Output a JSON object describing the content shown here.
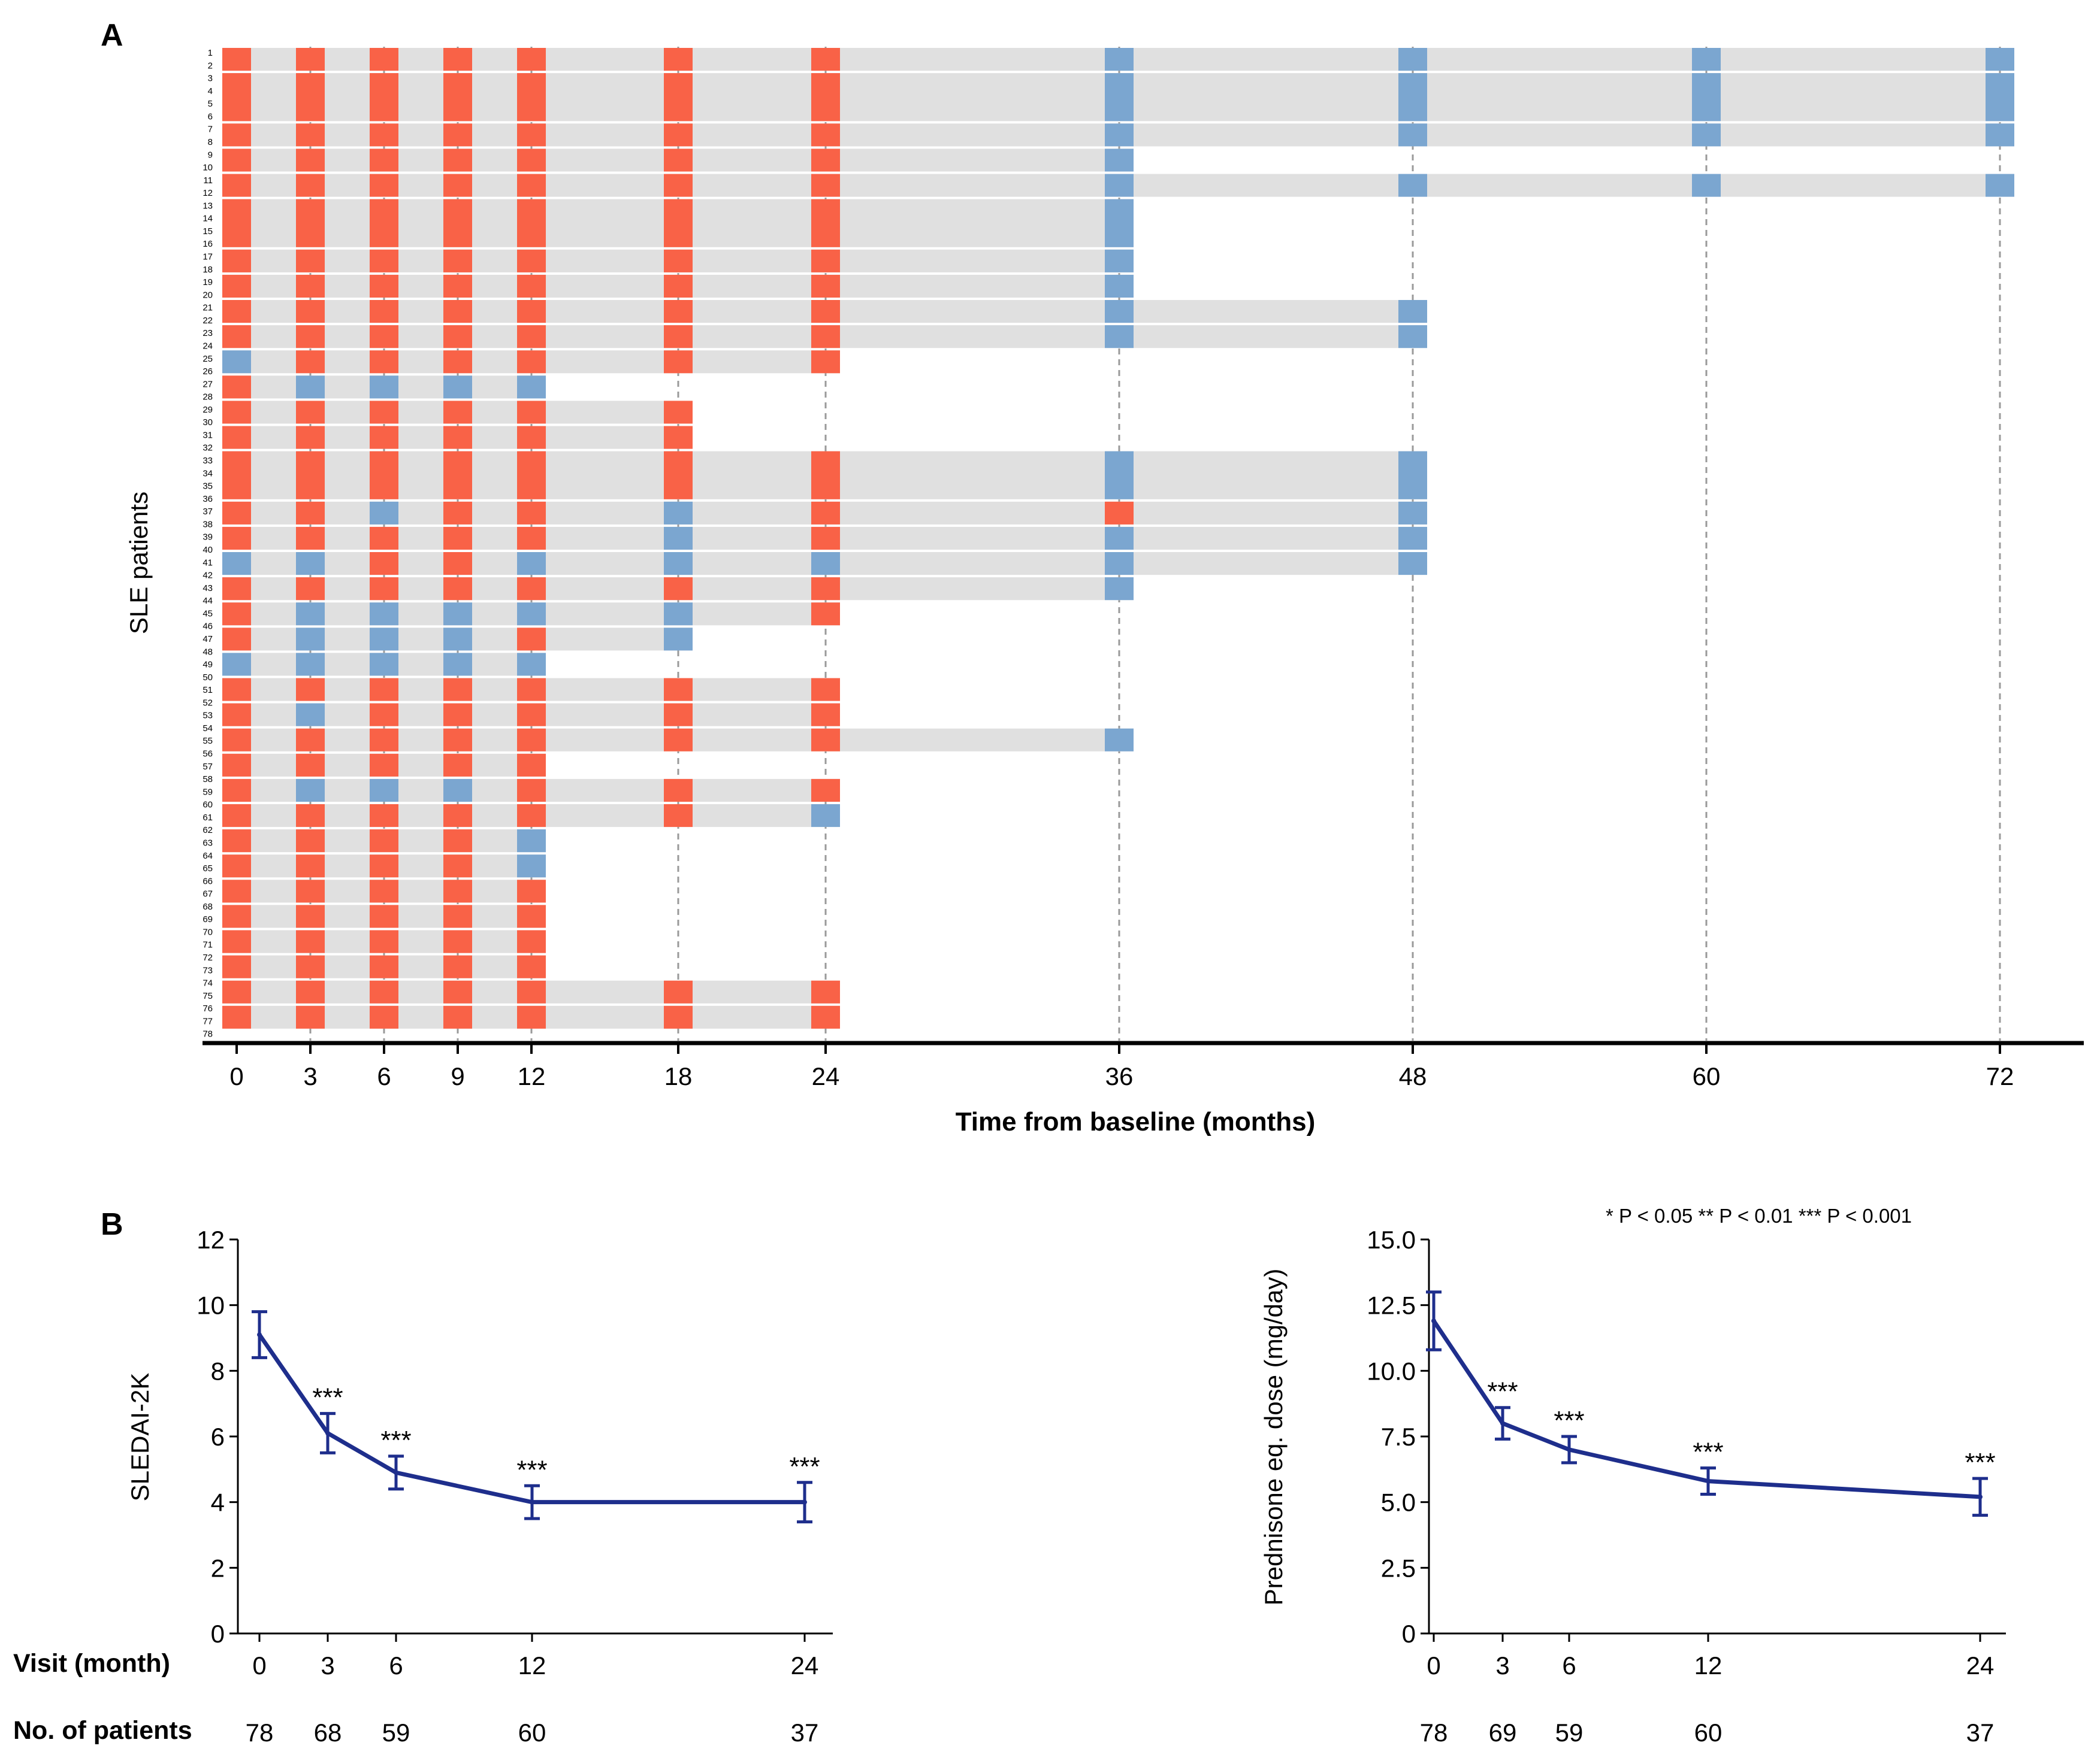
{
  "chart_data": [
    {
      "panel": "A",
      "type": "swimlane",
      "ylabel": "SLE patients",
      "xlabel": "Time from baseline (months)",
      "x_ticks": [
        0,
        3,
        6,
        9,
        12,
        18,
        24,
        36,
        48,
        60,
        72
      ],
      "patient_labels": [
        "1",
        "2",
        "3",
        "4",
        "5",
        "6",
        "7",
        "8",
        "9",
        "10",
        "11",
        "12",
        "13",
        "14",
        "15",
        "16",
        "17",
        "18",
        "19",
        "20",
        "21",
        "22",
        "23",
        "24",
        "25",
        "26",
        "27",
        "28",
        "29",
        "30",
        "31",
        "32",
        "33",
        "34",
        "35",
        "36",
        "37",
        "38",
        "39",
        "40",
        "41",
        "42",
        "43",
        "44",
        "45",
        "46",
        "47",
        "48",
        "49",
        "50",
        "51",
        "52",
        "53",
        "54",
        "55",
        "56",
        "57",
        "58",
        "59",
        "60",
        "61",
        "62",
        "63",
        "64",
        "65",
        "66",
        "67",
        "68",
        "69",
        "70",
        "71",
        "72",
        "73",
        "74",
        "75",
        "76",
        "77",
        "78"
      ],
      "colors": {
        "active": "#f96247",
        "inactive": "#7ba6d0",
        "followup": "#e0e0e0"
      },
      "pair_groups": [
        {
          "pairs": [
            1
          ],
          "visits": "AAAAAAABBBB"
        },
        {
          "pairs": [
            2,
            3
          ],
          "visits": "AAAAAAABBBB"
        },
        {
          "pairs": [
            4
          ],
          "visits": "AAAAAAABBBB"
        },
        {
          "pairs": [
            5
          ],
          "visits": "AAAAAAAB"
        },
        {
          "pairs": [
            6
          ],
          "visits": "AAAAAAABBBB"
        },
        {
          "pairs": [
            7,
            8
          ],
          "visits": "AAAAAAAB"
        },
        {
          "pairs": [
            9
          ],
          "visits": "AAAAAAAB"
        },
        {
          "pairs": [
            10
          ],
          "visits": "AAAAAAAB"
        },
        {
          "pairs": [
            11
          ],
          "visits": "AAAAAAABB"
        },
        {
          "pairs": [
            12
          ],
          "visits": "AAAAAAABB"
        },
        {
          "pairs": [
            13
          ],
          "visits": "BAAAAAA"
        },
        {
          "pairs": [
            14
          ],
          "visits": "ABBBB"
        },
        {
          "pairs": [
            15
          ],
          "visits": "AAAAAA"
        },
        {
          "pairs": [
            16
          ],
          "visits": "AAAAAA"
        },
        {
          "pairs": [
            17,
            18
          ],
          "visits": "AAAAAAABB"
        },
        {
          "pairs": [
            19
          ],
          "visits": "AABAABAAB"
        },
        {
          "pairs": [
            20
          ],
          "visits": "AAAAABABB"
        },
        {
          "pairs": [
            21
          ],
          "visits": "BBAABBBBB"
        },
        {
          "pairs": [
            22
          ],
          "visits": "AAAAAAAB"
        },
        {
          "pairs": [
            23
          ],
          "visits": "ABBBBBA"
        },
        {
          "pairs": [
            24
          ],
          "visits": "ABBBAB"
        },
        {
          "pairs": [
            25
          ],
          "visits": "BBBBB"
        },
        {
          "pairs": [
            26
          ],
          "visits": "AAAAAAA"
        },
        {
          "pairs": [
            27
          ],
          "visits": "ABAAAAA"
        },
        {
          "pairs": [
            28
          ],
          "visits": "AAAAAAAB"
        },
        {
          "pairs": [
            29
          ],
          "visits": "AAAAA"
        },
        {
          "pairs": [
            30
          ],
          "visits": "ABBBAAA"
        },
        {
          "pairs": [
            31
          ],
          "visits": "AAAAAAB"
        },
        {
          "pairs": [
            32
          ],
          "visits": "AAAAB"
        },
        {
          "pairs": [
            33
          ],
          "visits": "AAAAB"
        },
        {
          "pairs": [
            34
          ],
          "visits": "AAAAA"
        },
        {
          "pairs": [
            35
          ],
          "visits": "AAAAA"
        },
        {
          "pairs": [
            36
          ],
          "visits": "AAAAA"
        },
        {
          "pairs": [
            37
          ],
          "visits": "AAAAA"
        },
        {
          "pairs": [
            38
          ],
          "visits": "AAAAAAA"
        },
        {
          "pairs": [
            39
          ],
          "visits": "AAAAAAA"
        }
      ]
    },
    {
      "panel": "B-left",
      "type": "line",
      "ylabel": "SLEDAI-2K",
      "x": [
        0,
        3,
        6,
        12,
        24
      ],
      "x_ticks": [
        "0",
        "3",
        "6",
        "12",
        "24"
      ],
      "y_ticks": [
        "0",
        "2",
        "4",
        "6",
        "8",
        "10",
        "12"
      ],
      "ylim": [
        0,
        12
      ],
      "values": [
        9.1,
        6.1,
        4.9,
        4.0,
        4.0
      ],
      "error": [
        0.7,
        0.6,
        0.5,
        0.5,
        0.6
      ],
      "annotations": [
        "",
        "***",
        "***",
        "***",
        "***"
      ],
      "n_patients": [
        "78",
        "68",
        "59",
        "60",
        "37"
      ]
    },
    {
      "panel": "B-right",
      "type": "line",
      "ylabel": "Prednisone eq. dose (mg/day)",
      "x": [
        0,
        3,
        6,
        12,
        24
      ],
      "x_ticks": [
        "0",
        "3",
        "6",
        "12",
        "24"
      ],
      "y_ticks": [
        "0",
        "2.5",
        "5.0",
        "7.5",
        "10.0",
        "12.5",
        "15.0"
      ],
      "ylim": [
        0,
        15
      ],
      "values": [
        11.9,
        8.0,
        7.0,
        5.8,
        5.2
      ],
      "error": [
        1.1,
        0.6,
        0.5,
        0.5,
        0.7
      ],
      "annotations": [
        "",
        "***",
        "***",
        "***",
        "***"
      ],
      "n_patients": [
        "78",
        "69",
        "59",
        "60",
        "37"
      ]
    }
  ],
  "labels": {
    "panel_a": "A",
    "panel_b": "B",
    "visit_row": "Visit (month)",
    "patients_row": "No. of patients",
    "significance_legend": "* P < 0.05  ** P < 0.01  *** P < 0.001"
  },
  "colors": {
    "line": "#1e2e8c",
    "text": "#000000",
    "grid": "#9a9a9a"
  }
}
